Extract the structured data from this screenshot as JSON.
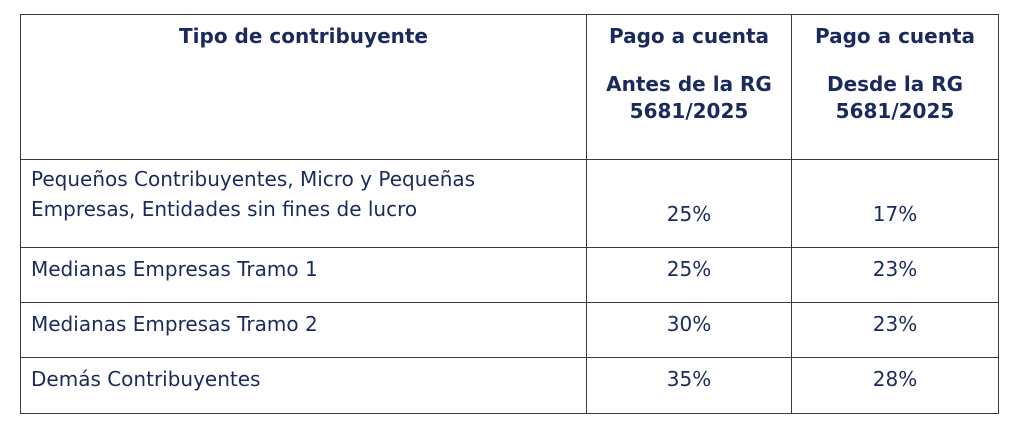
{
  "table": {
    "headers": {
      "col1": "Tipo de contribuyente",
      "col2_top": "Pago a cuenta",
      "col2_bottom": "Antes de la RG 5681/2025",
      "col3_top": "Pago a cuenta",
      "col3_bottom": "Desde la RG 5681/2025"
    },
    "rows": [
      {
        "tipo": "Pequeños Contribuyentes, Micro y Pequeñas Empresas, Entidades sin fines de lucro",
        "antes": "25%",
        "desde": "17%"
      },
      {
        "tipo": "Medianas Empresas Tramo 1",
        "antes": "25%",
        "desde": "23%"
      },
      {
        "tipo": "Medianas Empresas Tramo 2",
        "antes": "30%",
        "desde": "23%"
      },
      {
        "tipo": "Demás Contribuyentes",
        "antes": "35%",
        "desde": "28%"
      }
    ]
  },
  "colors": {
    "text": "#1b2a5c",
    "border": "#3a3a3a"
  }
}
